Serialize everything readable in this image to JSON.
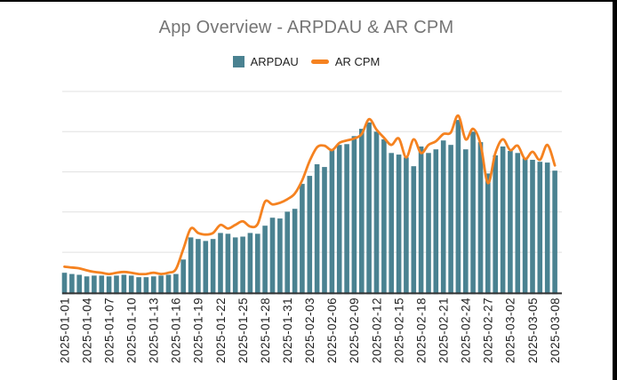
{
  "page": {
    "title": "App Overview - ARPDAU & AR CPM"
  },
  "legend": {
    "items": [
      {
        "label": "ARPDAU",
        "swatch": "square",
        "color": "#4a8291"
      },
      {
        "label": "AR CPM",
        "swatch": "line",
        "color": "#f58220"
      }
    ]
  },
  "chart_data": {
    "type": "combo",
    "title": "App Overview - ARPDAU & AR CPM",
    "xlabel": "",
    "ylabel": "",
    "y_axis_labels_visible": false,
    "ylim": [
      0,
      5
    ],
    "gridline_count": 6,
    "legend_position": "top",
    "units_note": "no y-axis tick labels shown; values estimated in gridline units (1 unit = one gridline interval)",
    "colors": {
      "bar": "#4a8291",
      "line": "#f58220",
      "grid": "#e0e0e0",
      "axis": "#333333",
      "title_text": "#757575",
      "tick_text": "#212121"
    },
    "x": [
      "2025-01-01",
      "2025-01-02",
      "2025-01-03",
      "2025-01-04",
      "2025-01-05",
      "2025-01-06",
      "2025-01-07",
      "2025-01-08",
      "2025-01-09",
      "2025-01-10",
      "2025-01-11",
      "2025-01-12",
      "2025-01-13",
      "2025-01-14",
      "2025-01-15",
      "2025-01-16",
      "2025-01-17",
      "2025-01-18",
      "2025-01-19",
      "2025-01-20",
      "2025-01-21",
      "2025-01-22",
      "2025-01-23",
      "2025-01-24",
      "2025-01-25",
      "2025-01-26",
      "2025-01-27",
      "2025-01-28",
      "2025-01-29",
      "2025-01-30",
      "2025-01-31",
      "2025-02-01",
      "2025-02-02",
      "2025-02-03",
      "2025-02-04",
      "2025-02-05",
      "2025-02-06",
      "2025-02-07",
      "2025-02-08",
      "2025-02-09",
      "2025-02-10",
      "2025-02-11",
      "2025-02-12",
      "2025-02-13",
      "2025-02-14",
      "2025-02-15",
      "2025-02-16",
      "2025-02-17",
      "2025-02-18",
      "2025-02-19",
      "2025-02-20",
      "2025-02-21",
      "2025-02-22",
      "2025-02-23",
      "2025-02-24",
      "2025-02-25",
      "2025-02-26",
      "2025-02-27",
      "2025-02-28",
      "2025-03-01",
      "2025-03-02",
      "2025-03-03",
      "2025-03-04",
      "2025-03-05",
      "2025-03-06",
      "2025-03-07",
      "2025-03-08"
    ],
    "x_tick_labels": [
      "2025-01-01",
      "2025-01-04",
      "2025-01-07",
      "2025-01-10",
      "2025-01-13",
      "2025-01-16",
      "2025-01-19",
      "2025-01-22",
      "2025-01-25",
      "2025-01-28",
      "2025-01-31",
      "2025-02-03",
      "2025-02-06",
      "2025-02-09",
      "2025-02-12",
      "2025-02-15",
      "2025-02-18",
      "2025-02-21",
      "2025-02-24",
      "2025-02-27",
      "2025-03-02",
      "2025-03-05",
      "2025-03-08"
    ],
    "x_tick_every_n_days": 3,
    "series": [
      {
        "name": "ARPDAU",
        "type": "bar",
        "color": "#4a8291",
        "values": [
          0.49,
          0.46,
          0.44,
          0.4,
          0.42,
          0.42,
          0.4,
          0.42,
          0.44,
          0.42,
          0.38,
          0.38,
          0.4,
          0.42,
          0.44,
          0.46,
          0.82,
          1.37,
          1.33,
          1.28,
          1.33,
          1.48,
          1.46,
          1.37,
          1.39,
          1.48,
          1.46,
          1.66,
          1.86,
          1.84,
          2.01,
          2.08,
          2.7,
          2.9,
          3.19,
          3.12,
          3.54,
          3.67,
          3.69,
          3.89,
          4.07,
          4.23,
          4.0,
          3.81,
          3.47,
          3.43,
          3.36,
          3.14,
          3.63,
          3.47,
          3.56,
          3.78,
          3.67,
          4.29,
          3.56,
          4.0,
          3.74,
          2.96,
          3.41,
          3.63,
          3.52,
          3.47,
          3.34,
          3.3,
          3.25,
          3.23,
          3.03
        ]
      },
      {
        "name": "AR CPM",
        "type": "line",
        "smooth": true,
        "color": "#f58220",
        "values": [
          0.64,
          0.62,
          0.6,
          0.55,
          0.51,
          0.49,
          0.46,
          0.49,
          0.51,
          0.49,
          0.46,
          0.46,
          0.49,
          0.46,
          0.49,
          0.58,
          1.08,
          1.59,
          1.48,
          1.44,
          1.48,
          1.68,
          1.59,
          1.68,
          1.77,
          1.64,
          1.7,
          2.26,
          2.19,
          2.23,
          2.32,
          2.46,
          2.79,
          3.27,
          3.61,
          3.65,
          3.54,
          3.72,
          3.78,
          3.83,
          3.94,
          4.31,
          4.05,
          3.85,
          3.67,
          3.83,
          3.36,
          3.81,
          3.47,
          3.67,
          3.76,
          3.94,
          3.98,
          4.4,
          3.81,
          4.07,
          3.69,
          2.72,
          3.47,
          3.81,
          3.54,
          3.65,
          3.32,
          3.5,
          3.3,
          3.67,
          3.16
        ]
      }
    ]
  }
}
